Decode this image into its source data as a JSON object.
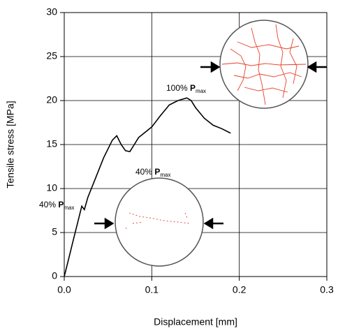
{
  "chart_data": {
    "type": "line",
    "x_label": "Displacement [mm]",
    "y_label": "Tensile stress [MPa]",
    "x": [
      0,
      0.005,
      0.01,
      0.015,
      0.02,
      0.023,
      0.027,
      0.035,
      0.045,
      0.055,
      0.06,
      0.065,
      0.07,
      0.075,
      0.08,
      0.085,
      0.09,
      0.1,
      0.11,
      0.12,
      0.13,
      0.14,
      0.145,
      0.15,
      0.16,
      0.17,
      0.18,
      0.19
    ],
    "values": [
      0,
      2,
      4,
      6,
      8,
      7.6,
      9,
      11,
      13.5,
      15.5,
      16,
      15,
      14.3,
      14.2,
      15,
      15.8,
      16.2,
      17,
      18.3,
      19.5,
      20,
      20.3,
      20,
      19.2,
      18,
      17.2,
      16.8,
      16.3
    ],
    "color": "#000000",
    "xlim": [
      0,
      0.3
    ],
    "xticks": [
      {
        "value": 0,
        "label": "0.0"
      },
      0.1,
      0.2,
      0.3
    ],
    "ylim": [
      0,
      30
    ],
    "yticks": [
      0,
      5,
      10,
      15,
      20,
      25,
      30
    ],
    "grid": true,
    "annotations": [
      {
        "text": "40%",
        "symbol": "P",
        "subscript": "max"
      },
      {
        "text": "40%",
        "symbol": "P",
        "subscript": "max"
      },
      {
        "text": "100%",
        "symbol": "P",
        "subscript": "max"
      }
    ]
  }
}
